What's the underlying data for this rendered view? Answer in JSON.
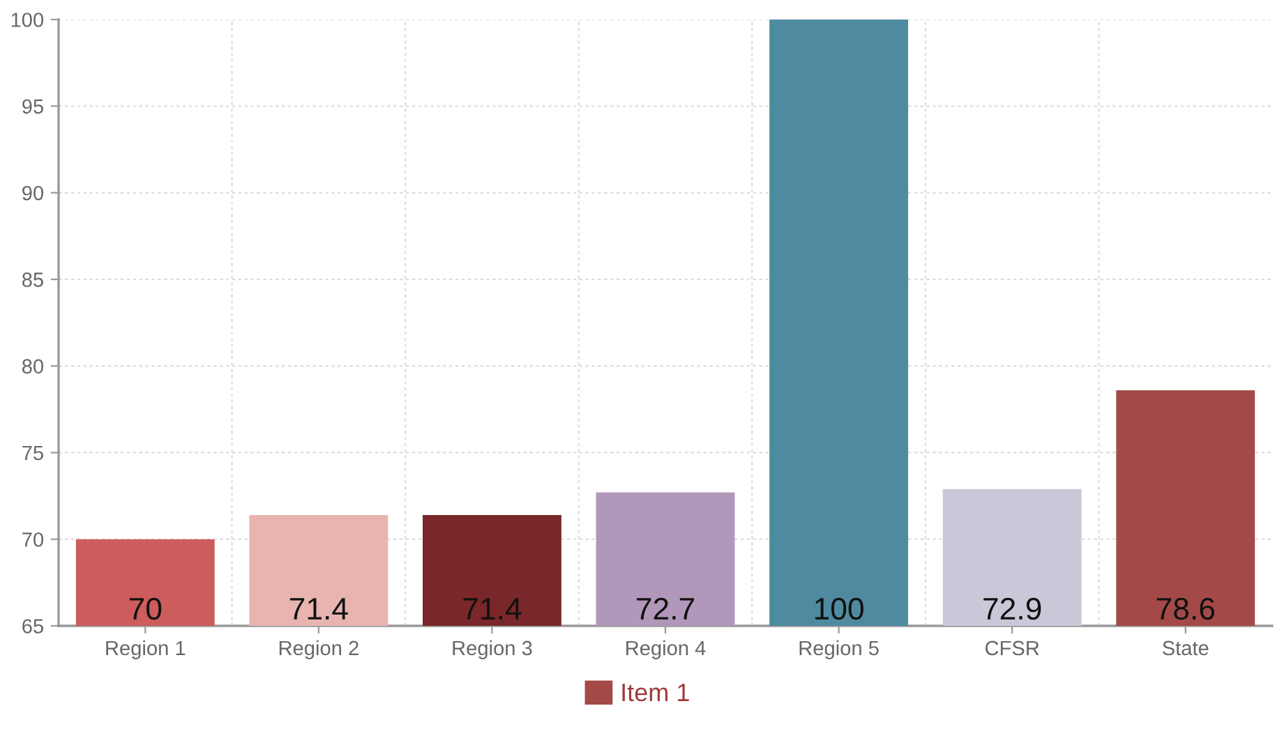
{
  "chart_data": {
    "type": "bar",
    "categories": [
      "Region 1",
      "Region 2",
      "Region 3",
      "Region 4",
      "Region 5",
      "CFSR",
      "State"
    ],
    "series": [
      {
        "name": "Item 1",
        "color": "#a34a48",
        "colors": [
          "#cd5c5c",
          "#e8b4b0",
          "#7a272a",
          "#b197b9",
          "#4f8ba0",
          "#c9c8d8",
          "#a34a48"
        ],
        "values": [
          70,
          71.4,
          71.4,
          72.7,
          100,
          72.9,
          78.6
        ]
      }
    ],
    "ylim": [
      65,
      100
    ],
    "yticks": [
      65,
      70,
      75,
      80,
      85,
      90,
      95,
      100
    ],
    "grid": true,
    "legend": "bottom",
    "data_labels": true
  }
}
